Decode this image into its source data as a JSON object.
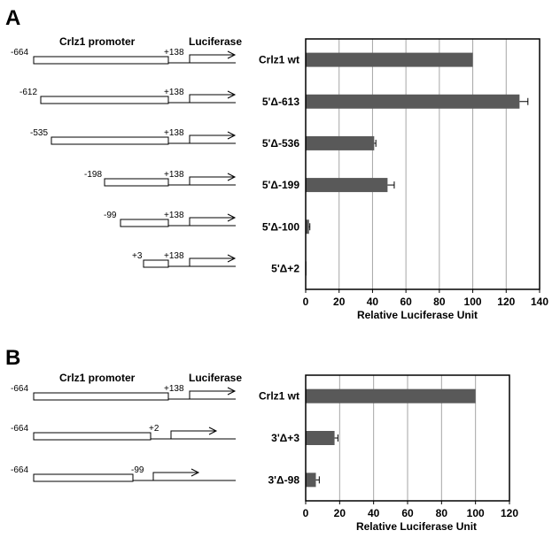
{
  "panels": [
    {
      "letter": "A",
      "promoter_label": "Crlz1 promoter",
      "luciferase_label": "Luciferase",
      "constructs": [
        {
          "start_label": "-664",
          "end_label": "+138"
        },
        {
          "start_label": "-612",
          "end_label": "+138"
        },
        {
          "start_label": "-535",
          "end_label": "+138"
        },
        {
          "start_label": "-198",
          "end_label": "+138"
        },
        {
          "start_label": "-99",
          "end_label": "+138"
        },
        {
          "start_label": "+3",
          "end_label": "+138"
        }
      ]
    },
    {
      "letter": "B",
      "promoter_label": "Crlz1 promoter",
      "luciferase_label": "Luciferase",
      "constructs": [
        {
          "start_label": "-664",
          "end_label": "+138"
        },
        {
          "start_label": "-664",
          "end_label": "+2"
        },
        {
          "start_label": "-664",
          "end_label": "-99"
        }
      ]
    }
  ],
  "colors": {
    "bar": "#595959",
    "grid": "#a6a6a6",
    "axis": "#000000"
  },
  "chart_data": [
    {
      "type": "bar",
      "orientation": "horizontal",
      "categories": [
        "Crlz1 wt",
        "5'Δ-613",
        "5'Δ-536",
        "5'Δ-199",
        "5'Δ-100",
        "5'Δ+2"
      ],
      "values": [
        100,
        128,
        41,
        49,
        2,
        0.5
      ],
      "errors": [
        0,
        5,
        1,
        4,
        0.5,
        0
      ],
      "xlabel": "Relative Luciferase Unit",
      "xlim": [
        0,
        140
      ],
      "xticks": [
        0,
        20,
        40,
        60,
        80,
        100,
        120,
        140
      ],
      "grid": true
    },
    {
      "type": "bar",
      "orientation": "horizontal",
      "categories": [
        "Crlz1 wt",
        "3'Δ+3",
        "3'Δ-98"
      ],
      "values": [
        100,
        17,
        6
      ],
      "errors": [
        0,
        2,
        2
      ],
      "xlabel": "Relative Luciferase Unit",
      "xlim": [
        0,
        120
      ],
      "xticks": [
        0,
        20,
        40,
        60,
        80,
        100,
        120
      ],
      "grid": true
    }
  ]
}
